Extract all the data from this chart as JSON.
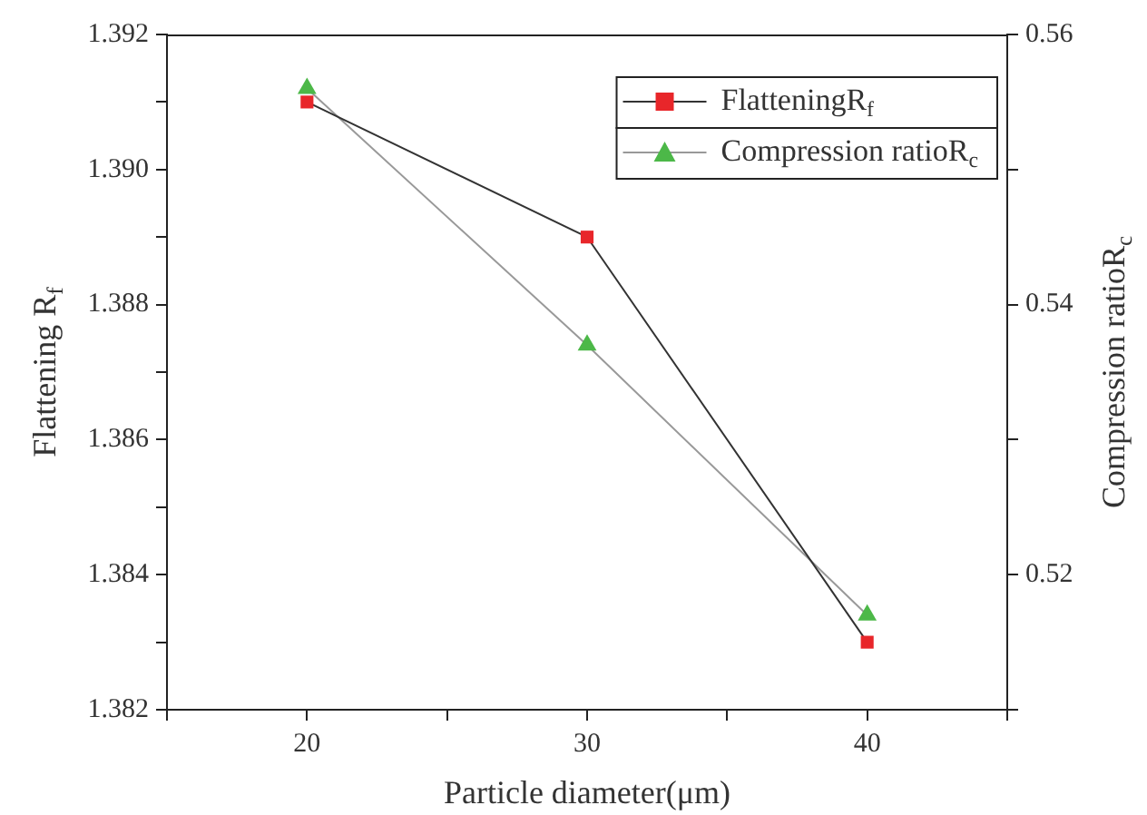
{
  "chart_data": {
    "type": "line",
    "xlabel": "Particle diameter(μm)",
    "ylabel": "Flattening R$_{f}$",
    "y2label": "Compression ratioR$_{c}$",
    "x": [
      20,
      30,
      40
    ],
    "series": [
      {
        "name": "FlatteningR$_{f}$",
        "color": "#e8262a",
        "marker": "square",
        "values": [
          1.391,
          1.389,
          1.383
        ]
      },
      {
        "name": "Compression ratioR$_{c}$",
        "color": "#4cb848",
        "marker": "triangle",
        "axis": "y2",
        "values": [
          0.556,
          0.537,
          0.517
        ]
      }
    ],
    "xlim": [
      15,
      45
    ],
    "xticks": [
      {
        "value": 15,
        "label": null
      },
      20,
      {
        "value": 25,
        "label": null
      },
      30,
      {
        "value": 35,
        "label": null
      },
      40,
      {
        "value": 45,
        "label": null
      }
    ],
    "ylim": [
      1.382,
      1.392
    ],
    "yticks": [
      1.382,
      {
        "value": 1.383,
        "label": null
      },
      1.384,
      {
        "value": 1.385,
        "label": null
      },
      1.386,
      {
        "value": 1.387,
        "label": null
      },
      1.388,
      {
        "value": 1.389,
        "label": null
      },
      {
        "value": 1.39,
        "label": "1.390"
      },
      {
        "value": 1.391,
        "label": null
      },
      1.392
    ],
    "y2lim": [
      0.51,
      0.56
    ],
    "y2ticks": [
      {
        "value": 0.51,
        "label": null
      },
      0.52,
      {
        "value": 0.53,
        "label": null
      },
      0.54,
      {
        "value": 0.55,
        "label": null
      },
      0.56
    ],
    "grid": false,
    "legend": "top right"
  }
}
